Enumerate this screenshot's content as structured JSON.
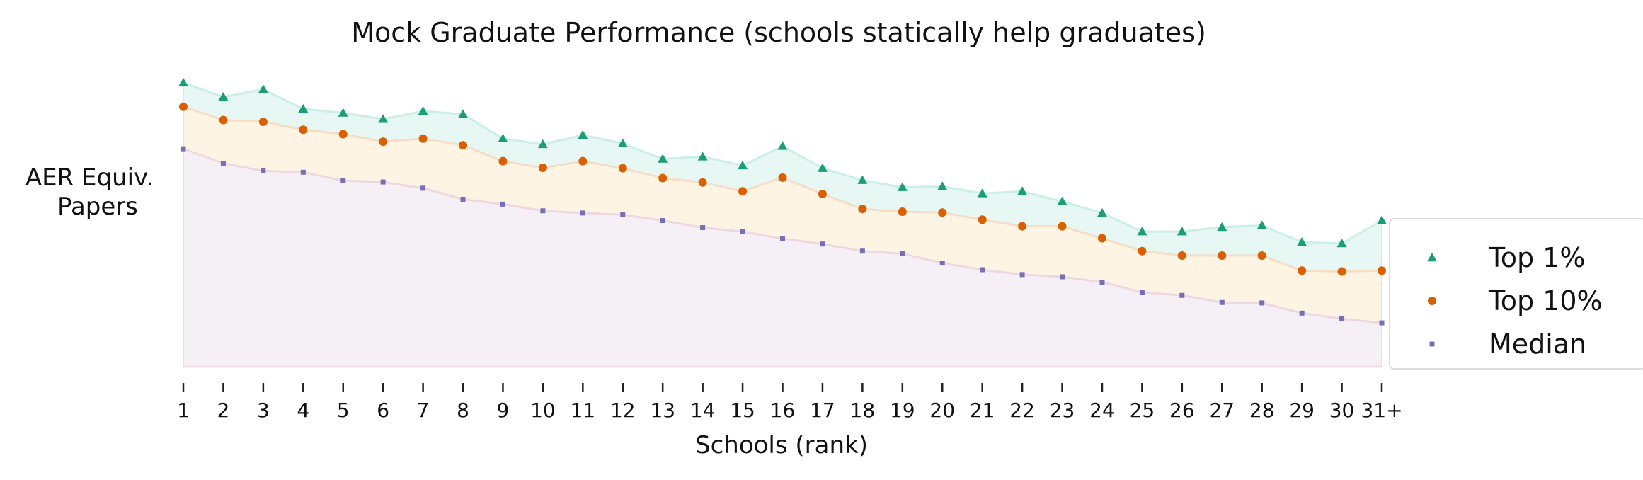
{
  "chart_data": {
    "type": "area",
    "title": "Mock Graduate Performance (schools statically help graduates)",
    "ylabel_lines": [
      "AER Equiv.",
      "Papers"
    ],
    "xlabel": "Schools (rank)",
    "categories": [
      "1",
      "2",
      "3",
      "4",
      "5",
      "6",
      "7",
      "8",
      "9",
      "10",
      "11",
      "12",
      "13",
      "14",
      "15",
      "16",
      "17",
      "18",
      "19",
      "20",
      "21",
      "22",
      "23",
      "24",
      "25",
      "26",
      "27",
      "28",
      "29",
      "30",
      "31+"
    ],
    "y_ticks_shown": false,
    "grid": false,
    "legend_position": "right",
    "series": [
      {
        "name": "Top 1%",
        "marker": "triangle",
        "color": "#1b9e77",
        "fill": "#e6f7f4",
        "values": [
          6.41,
          6.09,
          6.26,
          5.82,
          5.73,
          5.59,
          5.77,
          5.7,
          5.15,
          5.02,
          5.23,
          5.04,
          4.69,
          4.74,
          4.54,
          4.98,
          4.48,
          4.21,
          4.05,
          4.07,
          3.91,
          3.96,
          3.73,
          3.47,
          3.05,
          3.05,
          3.15,
          3.19,
          2.81,
          2.78,
          3.3
        ]
      },
      {
        "name": "Top 10%",
        "marker": "circle",
        "color": "#d95f02",
        "fill": "#fdf4e3",
        "values": [
          5.87,
          5.57,
          5.53,
          5.35,
          5.25,
          5.08,
          5.15,
          5.0,
          4.64,
          4.49,
          4.64,
          4.48,
          4.26,
          4.16,
          3.96,
          4.27,
          3.9,
          3.56,
          3.5,
          3.48,
          3.32,
          3.17,
          3.17,
          2.9,
          2.61,
          2.51,
          2.51,
          2.51,
          2.17,
          2.15,
          2.17
        ]
      },
      {
        "name": "Median",
        "marker": "square",
        "color": "#7570b3",
        "fill": "#f5eff6",
        "values": [
          4.92,
          4.59,
          4.42,
          4.39,
          4.2,
          4.17,
          4.03,
          3.78,
          3.67,
          3.52,
          3.47,
          3.43,
          3.3,
          3.14,
          3.05,
          2.89,
          2.77,
          2.61,
          2.55,
          2.34,
          2.19,
          2.08,
          2.03,
          1.91,
          1.68,
          1.61,
          1.45,
          1.44,
          1.21,
          1.08,
          0.99
        ]
      }
    ],
    "ylim": [
      0,
      7
    ]
  }
}
